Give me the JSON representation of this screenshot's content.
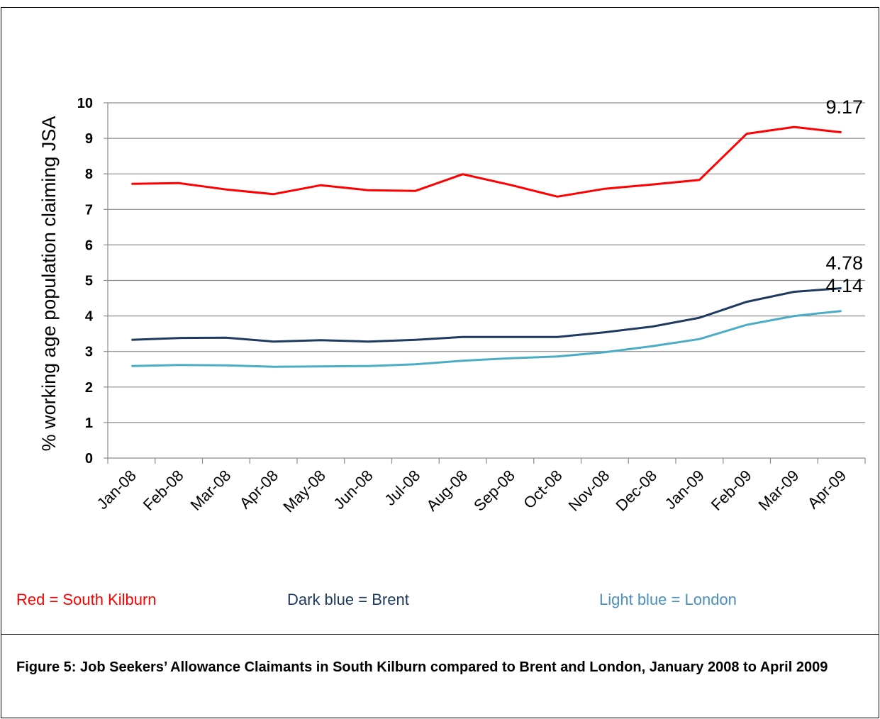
{
  "chart_data": {
    "type": "line",
    "ylabel": "% working age population claiming JSA",
    "xlabel": "",
    "ylim": [
      0,
      10
    ],
    "yticks": [
      0,
      1,
      2,
      3,
      4,
      5,
      6,
      7,
      8,
      9,
      10
    ],
    "grid": true,
    "categories": [
      "Jan-08",
      "Feb-08",
      "Mar-08",
      "Apr-08",
      "May-08",
      "Jun-08",
      "Jul-08",
      "Aug-08",
      "Sep-08",
      "Oct-08",
      "Nov-08",
      "Dec-08",
      "Jan-09",
      "Feb-09",
      "Mar-09",
      "Apr-09"
    ],
    "series": [
      {
        "name": "South Kilburn",
        "color": "#ff0000",
        "values": [
          7.72,
          7.74,
          7.56,
          7.43,
          7.68,
          7.54,
          7.52,
          7.99,
          7.69,
          7.36,
          7.58,
          7.7,
          7.83,
          9.13,
          9.32,
          9.17
        ],
        "end_label": "9.17"
      },
      {
        "name": "Brent",
        "color": "#1f3a60",
        "values": [
          3.33,
          3.38,
          3.39,
          3.28,
          3.32,
          3.28,
          3.33,
          3.41,
          3.41,
          3.41,
          3.54,
          3.7,
          3.95,
          4.4,
          4.68,
          4.78
        ],
        "end_label": "4.78"
      },
      {
        "name": "London",
        "color": "#4bacc6",
        "values": [
          2.59,
          2.62,
          2.61,
          2.57,
          2.58,
          2.59,
          2.64,
          2.74,
          2.81,
          2.86,
          2.98,
          3.15,
          3.35,
          3.75,
          4.0,
          4.14
        ],
        "end_label": "4.14"
      }
    ]
  },
  "legend": {
    "south_kilburn": "Red = South Kilburn",
    "brent": "Dark blue = Brent",
    "london": "Light blue = London"
  },
  "caption": "Figure 5: Job Seekers’ Allowance Claimants in South Kilburn compared to Brent and London, January 2008 to April 2009"
}
